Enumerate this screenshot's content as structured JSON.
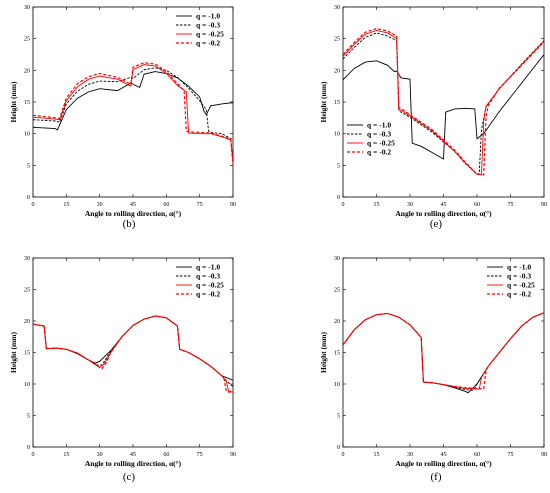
{
  "chart_data": [
    {
      "type": "line",
      "panel_label": "(b)",
      "xlabel": "Angle to rolling direction, α(°)",
      "ylabel": "Height (mm)",
      "xlim": [
        0,
        90
      ],
      "ylim": [
        0,
        30
      ],
      "xticks": [
        "0",
        "15",
        "30",
        "45",
        "60",
        "75",
        "90"
      ],
      "yticks": [
        "0",
        "5",
        "10",
        "15",
        "20",
        "25",
        "30"
      ],
      "legend_position": "top-right",
      "series": [
        {
          "name": "q = -1.0",
          "x": [
            0,
            10,
            11,
            15,
            20,
            25,
            30,
            38,
            44,
            45,
            48,
            50,
            55,
            60,
            65,
            70,
            75,
            77,
            78,
            80,
            85,
            90
          ],
          "y": [
            11,
            10.8,
            10.6,
            13.8,
            15.6,
            16.6,
            17.1,
            16.8,
            18.0,
            17.8,
            17.3,
            19.4,
            19.8,
            19.5,
            18.8,
            17.5,
            15.8,
            13.5,
            13.0,
            14.4,
            14.7,
            14.9
          ]
        },
        {
          "name": "q = -0.3",
          "x": [
            0,
            10,
            12,
            15,
            20,
            25,
            30,
            38,
            44,
            45,
            50,
            55,
            60,
            65,
            70,
            75,
            78,
            79,
            80,
            85,
            90
          ],
          "y": [
            12.2,
            12.0,
            11.8,
            14.7,
            16.7,
            17.8,
            18.3,
            18.2,
            18.9,
            18.7,
            20.1,
            20.4,
            20.0,
            18.9,
            17.2,
            15.2,
            13.8,
            10.4,
            10.2,
            10.0,
            9.0
          ]
        },
        {
          "name": "q = -0.25",
          "x": [
            0,
            10,
            12,
            15,
            20,
            25,
            30,
            38,
            44,
            45,
            50,
            55,
            60,
            65,
            69,
            70,
            75,
            80,
            85,
            89,
            90
          ],
          "y": [
            12.6,
            12.3,
            12.2,
            15.2,
            17.4,
            18.6,
            19.1,
            18.6,
            17.5,
            20.1,
            20.9,
            20.7,
            19.5,
            17.6,
            16.6,
            10.1,
            10.0,
            10.0,
            9.5,
            9.0,
            5.5
          ]
        },
        {
          "name": "q = -0.2",
          "x": [
            0,
            10,
            12,
            15,
            20,
            25,
            30,
            38,
            44,
            45,
            50,
            55,
            60,
            65,
            68,
            69,
            70,
            75,
            80,
            85,
            89,
            90
          ],
          "y": [
            12.9,
            12.5,
            12.4,
            15.6,
            17.9,
            19.0,
            19.5,
            18.9,
            17.8,
            20.5,
            21.2,
            21.0,
            19.8,
            17.9,
            16.8,
            10.4,
            10.3,
            10.2,
            10.1,
            9.6,
            9.1,
            5.0
          ]
        }
      ]
    },
    {
      "type": "line",
      "panel_label": "(e)",
      "xlabel": "Angle to rolling direction, α(°)",
      "ylabel": "Height (mm)",
      "xlim": [
        0,
        90
      ],
      "ylim": [
        0,
        30
      ],
      "xticks": [
        "0",
        "15",
        "30",
        "45",
        "60",
        "75",
        "90"
      ],
      "yticks": [
        "0",
        "5",
        "10",
        "15",
        "20",
        "25",
        "30"
      ],
      "legend_position": "bottom-left",
      "series": [
        {
          "name": "q = -1.0",
          "x": [
            0,
            5,
            10,
            15,
            20,
            23,
            24,
            26,
            30,
            31,
            35,
            40,
            45,
            46,
            50,
            55,
            59,
            60,
            63,
            70,
            80,
            90
          ],
          "y": [
            18.5,
            20.3,
            21.3,
            21.5,
            20.8,
            19.8,
            19.9,
            18.8,
            18.6,
            8.5,
            8.0,
            7.0,
            6.0,
            13.4,
            13.9,
            14.0,
            13.9,
            9.2,
            10.0,
            13.5,
            18.0,
            22.5
          ]
        },
        {
          "name": "q = -0.3",
          "x": [
            0,
            5,
            10,
            15,
            20,
            24,
            25,
            30,
            40,
            50,
            55,
            60,
            61,
            62,
            64,
            70,
            80,
            90
          ],
          "y": [
            21.8,
            23.6,
            25.2,
            25.9,
            25.4,
            24.7,
            13.6,
            12.6,
            10.2,
            7.2,
            5.2,
            3.6,
            3.7,
            10.6,
            14.2,
            17.1,
            21.0,
            24.7
          ]
        },
        {
          "name": "q = -0.25",
          "x": [
            0,
            5,
            10,
            15,
            20,
            24,
            25,
            30,
            40,
            50,
            55,
            60,
            62,
            63,
            64,
            70,
            80,
            90
          ],
          "y": [
            22.2,
            24.1,
            25.7,
            26.3,
            25.9,
            25.0,
            13.9,
            12.8,
            10.4,
            7.2,
            5.3,
            3.6,
            3.5,
            12.0,
            14.3,
            17.1,
            20.9,
            24.6
          ]
        },
        {
          "name": "q = -0.2",
          "x": [
            0,
            5,
            10,
            15,
            20,
            24,
            25,
            30,
            40,
            50,
            55,
            60,
            63,
            64,
            65,
            70,
            80,
            90
          ],
          "y": [
            22.5,
            24.4,
            26.0,
            26.6,
            26.2,
            25.4,
            14.2,
            13.0,
            10.6,
            7.4,
            5.4,
            3.6,
            3.5,
            12.6,
            14.4,
            17.2,
            20.8,
            24.5
          ]
        }
      ]
    },
    {
      "type": "line",
      "panel_label": "(c)",
      "xlabel": "Angle to rolling direction, α(°)",
      "ylabel": "Height (mm)",
      "xlim": [
        0,
        90
      ],
      "ylim": [
        0,
        30
      ],
      "xticks": [
        "0",
        "15",
        "30",
        "45",
        "60",
        "75",
        "90"
      ],
      "yticks": [
        "0",
        "5",
        "10",
        "15",
        "20",
        "25",
        "30"
      ],
      "legend_position": "top-right",
      "series": [
        {
          "name": "q = -1.0",
          "x": [
            0,
            5,
            6,
            10,
            15,
            20,
            25,
            28,
            30,
            35,
            40,
            45,
            50,
            55,
            60,
            65,
            66,
            70,
            75,
            80,
            85,
            90
          ],
          "y": [
            19.5,
            19.2,
            15.6,
            15.7,
            15.5,
            14.8,
            13.8,
            13.3,
            13.6,
            15.3,
            17.5,
            19.3,
            20.3,
            20.8,
            20.5,
            19.2,
            15.5,
            15.0,
            14.0,
            12.8,
            11.3,
            10.6
          ]
        },
        {
          "name": "q = -0.3",
          "x": [
            0,
            5,
            6,
            10,
            15,
            20,
            25,
            29,
            31,
            35,
            40,
            45,
            50,
            55,
            60,
            65,
            66,
            70,
            75,
            80,
            85,
            87,
            90
          ],
          "y": [
            19.5,
            19.2,
            15.6,
            15.7,
            15.5,
            14.9,
            13.8,
            13.0,
            13.0,
            15.2,
            17.5,
            19.3,
            20.3,
            20.8,
            20.5,
            19.2,
            15.5,
            15.0,
            14.0,
            12.8,
            11.3,
            10.5,
            9.6
          ]
        },
        {
          "name": "q = -0.25",
          "x": [
            0,
            5,
            6,
            10,
            15,
            20,
            25,
            30,
            32,
            35,
            40,
            45,
            50,
            55,
            60,
            65,
            66,
            70,
            75,
            80,
            85,
            87,
            88,
            90
          ],
          "y": [
            19.5,
            19.2,
            15.6,
            15.7,
            15.5,
            14.9,
            13.8,
            12.6,
            13.2,
            15.0,
            17.5,
            19.3,
            20.3,
            20.8,
            20.5,
            19.2,
            15.5,
            15.0,
            14.0,
            12.8,
            11.3,
            10.4,
            8.9,
            8.7
          ]
        },
        {
          "name": "q = -0.2",
          "x": [
            0,
            5,
            6,
            10,
            15,
            20,
            25,
            31,
            33,
            35,
            40,
            45,
            50,
            55,
            60,
            65,
            66,
            70,
            75,
            80,
            85,
            86,
            87,
            90
          ],
          "y": [
            19.5,
            19.2,
            15.6,
            15.7,
            15.5,
            14.9,
            13.8,
            12.4,
            13.4,
            15.0,
            17.5,
            19.3,
            20.3,
            20.8,
            20.5,
            19.2,
            15.5,
            15.0,
            14.0,
            12.8,
            11.3,
            10.8,
            8.8,
            8.6
          ]
        }
      ]
    },
    {
      "type": "line",
      "panel_label": "(f)",
      "xlabel": "Angle to rolling direction, α(°)",
      "ylabel": "Height (mm)",
      "xlim": [
        0,
        90
      ],
      "ylim": [
        0,
        30
      ],
      "xticks": [
        "0",
        "15",
        "30",
        "45",
        "60",
        "75",
        "90"
      ],
      "yticks": [
        "0",
        "5",
        "10",
        "15",
        "20",
        "25",
        "30"
      ],
      "legend_position": "top-right",
      "series": [
        {
          "name": "q = -1.0",
          "x": [
            0,
            5,
            10,
            15,
            20,
            25,
            30,
            35,
            36,
            40,
            45,
            50,
            55,
            56,
            60,
            65,
            70,
            75,
            80,
            85,
            90
          ],
          "y": [
            16.2,
            18.6,
            20.2,
            21.0,
            21.2,
            20.6,
            19.4,
            17.4,
            10.3,
            10.2,
            9.9,
            9.4,
            8.8,
            8.6,
            10.0,
            12.8,
            15.0,
            17.2,
            19.2,
            20.6,
            21.3
          ]
        },
        {
          "name": "q = -0.3",
          "x": [
            0,
            5,
            10,
            15,
            20,
            25,
            30,
            35,
            36,
            40,
            45,
            50,
            55,
            58,
            59,
            60,
            65,
            70,
            75,
            80,
            85,
            90
          ],
          "y": [
            16.2,
            18.6,
            20.2,
            21.0,
            21.2,
            20.6,
            19.4,
            17.4,
            10.3,
            10.2,
            9.9,
            9.5,
            9.1,
            9.0,
            9.3,
            10.0,
            12.8,
            15.0,
            17.2,
            19.2,
            20.6,
            21.3
          ]
        },
        {
          "name": "q = -0.25",
          "x": [
            0,
            5,
            10,
            15,
            20,
            25,
            30,
            35,
            36,
            40,
            45,
            50,
            55,
            60,
            61,
            62,
            65,
            70,
            75,
            80,
            85,
            90
          ],
          "y": [
            16.2,
            18.6,
            20.2,
            21.0,
            21.2,
            20.6,
            19.4,
            17.4,
            10.3,
            10.2,
            9.9,
            9.6,
            9.3,
            9.2,
            9.2,
            11.0,
            12.8,
            15.0,
            17.2,
            19.2,
            20.6,
            21.3
          ]
        },
        {
          "name": "q = -0.2",
          "x": [
            0,
            5,
            10,
            15,
            20,
            25,
            30,
            35,
            36,
            40,
            45,
            50,
            55,
            60,
            63,
            64,
            65,
            70,
            75,
            80,
            85,
            90
          ],
          "y": [
            16.2,
            18.6,
            20.2,
            21.0,
            21.2,
            20.6,
            19.4,
            17.4,
            10.3,
            10.2,
            9.9,
            9.6,
            9.4,
            9.3,
            9.2,
            12.0,
            12.8,
            15.0,
            17.2,
            19.2,
            20.6,
            21.3
          ]
        }
      ]
    }
  ],
  "style": {
    "series_colors": [
      "#000000",
      "#000000",
      "#ff0000",
      "#ff0000"
    ],
    "series_dash": [
      "solid",
      "dashed",
      "solid",
      "dashed"
    ]
  }
}
